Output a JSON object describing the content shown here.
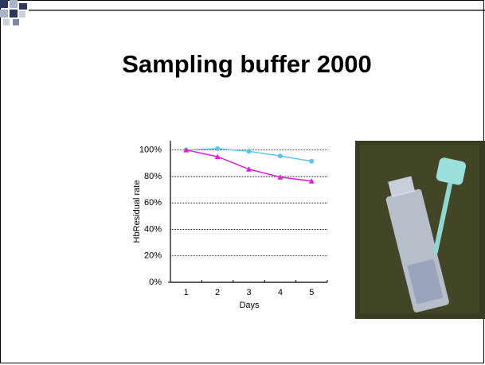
{
  "slide_title": "Sampling buffer 2000",
  "chart_data": {
    "type": "line",
    "y_label": "HbResidual rate",
    "x_label": "Days",
    "categories": [
      "1",
      "2",
      "3",
      "4",
      "5"
    ],
    "series": [
      {
        "color": "#5cc4ee",
        "values": [
          100,
          101,
          99,
          95.5,
          91.5
        ]
      },
      {
        "color": "#e020d8",
        "values": [
          100,
          95,
          85.5,
          79.5,
          76.5
        ]
      }
    ],
    "ylim": [
      0,
      107
    ],
    "yticks": [
      {
        "value": 0,
        "label": "0%"
      },
      {
        "value": 20,
        "label": "20%"
      },
      {
        "value": 40,
        "label": "40%"
      },
      {
        "value": 60,
        "label": "60%"
      },
      {
        "value": 80,
        "label": "80%"
      },
      {
        "value": 100,
        "label": "100%"
      }
    ],
    "grid": true
  }
}
